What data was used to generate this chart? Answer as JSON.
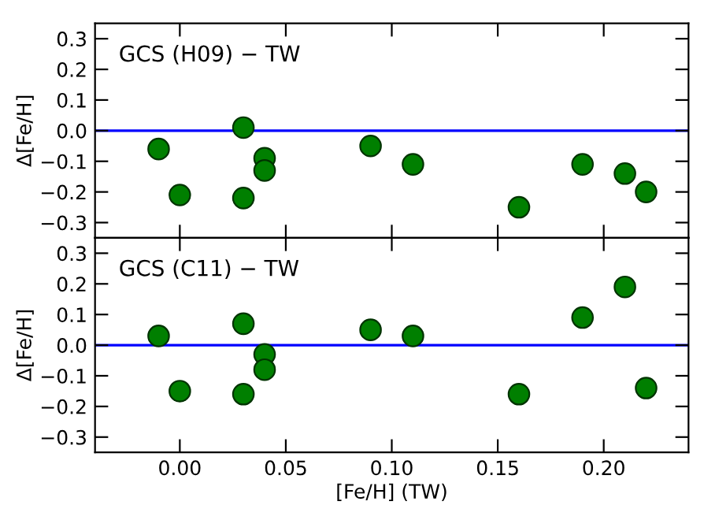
{
  "chart_data": [
    {
      "type": "scatter",
      "annotations": [
        "GCS (H09) − TW"
      ],
      "ylabel": "Δ[Fe/H]",
      "x": [
        -0.01,
        0.0,
        0.03,
        0.03,
        0.04,
        0.04,
        0.09,
        0.11,
        0.16,
        0.19,
        0.21,
        0.22
      ],
      "series": [
        {
          "color": "#007f00",
          "values": [
            -0.06,
            -0.21,
            0.01,
            -0.22,
            -0.09,
            -0.13,
            -0.05,
            -0.11,
            -0.25,
            -0.11,
            -0.14,
            -0.2
          ]
        }
      ],
      "xlim": [
        -0.04,
        0.24
      ],
      "xticks": [
        {
          "value": 0.0,
          "label": null
        },
        {
          "value": 0.05,
          "label": null
        },
        {
          "value": 0.1,
          "label": null
        },
        {
          "value": 0.15,
          "label": null
        },
        {
          "value": 0.2,
          "label": null
        }
      ],
      "ylim": [
        -0.35,
        0.35
      ],
      "yticks": [
        {
          "value": -0.3,
          "label": "−0.3"
        },
        {
          "value": -0.2,
          "label": "−0.2"
        },
        {
          "value": -0.1,
          "label": "−0.1"
        },
        {
          "value": 0.0,
          "label": "0.0"
        },
        {
          "value": 0.1,
          "label": "0.1"
        },
        {
          "value": 0.2,
          "label": "0.2"
        },
        {
          "value": 0.3,
          "label": "0.3"
        }
      ],
      "ref_lines": [
        {
          "axis": "y",
          "value": 0,
          "color": "#0000ff"
        }
      ],
      "marker": "circle",
      "grid": false,
      "legend": false,
      "tick_labels": "y"
    },
    {
      "type": "scatter",
      "annotations": [
        "GCS (C11) − TW"
      ],
      "ylabel": "Δ[Fe/H]",
      "xlabel": "[Fe/H] (TW)",
      "x": [
        -0.01,
        0.0,
        0.03,
        0.03,
        0.04,
        0.04,
        0.09,
        0.11,
        0.16,
        0.19,
        0.21,
        0.22
      ],
      "series": [
        {
          "color": "#007f00",
          "values": [
            0.03,
            -0.15,
            0.07,
            -0.16,
            -0.03,
            -0.08,
            0.05,
            0.03,
            -0.16,
            0.09,
            0.19,
            -0.14
          ]
        }
      ],
      "xlim": [
        -0.04,
        0.24
      ],
      "xticks": [
        {
          "value": 0.0,
          "label": "0.00"
        },
        {
          "value": 0.05,
          "label": "0.05"
        },
        {
          "value": 0.1,
          "label": "0.10"
        },
        {
          "value": 0.15,
          "label": "0.15"
        },
        {
          "value": 0.2,
          "label": "0.20"
        }
      ],
      "ylim": [
        -0.35,
        0.35
      ],
      "yticks": [
        {
          "value": -0.3,
          "label": "−0.3"
        },
        {
          "value": -0.2,
          "label": "−0.2"
        },
        {
          "value": -0.1,
          "label": "−0.1"
        },
        {
          "value": 0.0,
          "label": "0.0"
        },
        {
          "value": 0.1,
          "label": "0.1"
        },
        {
          "value": 0.2,
          "label": "0.2"
        },
        {
          "value": 0.3,
          "label": "0.3"
        }
      ],
      "ref_lines": [
        {
          "axis": "y",
          "value": 0,
          "color": "#0000ff"
        }
      ],
      "marker": "circle",
      "grid": false,
      "legend": false
    }
  ]
}
